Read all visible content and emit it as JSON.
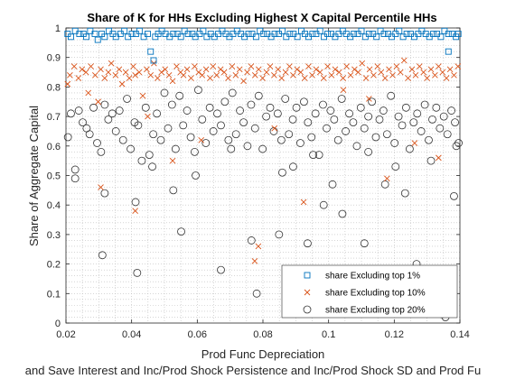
{
  "chart_data": {
    "type": "scatter",
    "title": "Share of K for HHs Excluding Highest X Capital Percentile HHs",
    "xlabel": "Prod Func Depreciation",
    "ylabel": "Share of Aggregate Capital",
    "caption": "and Save Interest and Inc/Prod Shock Persistence and Inc/Prod Shock SD and Prod Fu",
    "xlim": [
      0.02,
      0.14
    ],
    "ylim": [
      0,
      1
    ],
    "xticks": [
      "0.02",
      "0.04",
      "0.06",
      "0.08",
      "0.1",
      "0.12",
      "0.14"
    ],
    "yticks": [
      "0",
      "0.1",
      "0.2",
      "0.3",
      "0.4",
      "0.5",
      "0.6",
      "0.7",
      "0.8",
      "0.9",
      "1"
    ],
    "grid": "minor dotted",
    "legend_position": "bottom-right",
    "series": [
      {
        "name": "share Excluding top 1%",
        "marker": "square",
        "color": "#0072BD",
        "x": [
          0.0205,
          0.0215,
          0.0228,
          0.0241,
          0.0253,
          0.0262,
          0.0274,
          0.0288,
          0.0297,
          0.0309,
          0.0318,
          0.0331,
          0.0343,
          0.0352,
          0.0366,
          0.0378,
          0.0389,
          0.0401,
          0.0413,
          0.0424,
          0.0437,
          0.0449,
          0.0458,
          0.0467,
          0.0472,
          0.0481,
          0.0492,
          0.0503,
          0.0516,
          0.0527,
          0.0539,
          0.055,
          0.0561,
          0.0572,
          0.0585,
          0.0594,
          0.0607,
          0.0618,
          0.0629,
          0.0641,
          0.0652,
          0.0664,
          0.0676,
          0.0687,
          0.0698,
          0.0709,
          0.0721,
          0.0733,
          0.0744,
          0.0756,
          0.0767,
          0.0779,
          0.0791,
          0.0802,
          0.0813,
          0.0825,
          0.0836,
          0.0848,
          0.0859,
          0.0871,
          0.0882,
          0.0893,
          0.0905,
          0.0917,
          0.0928,
          0.0939,
          0.0951,
          0.0962,
          0.0974,
          0.0986,
          0.0997,
          0.1008,
          0.102,
          0.1031,
          0.1043,
          0.1054,
          0.1066,
          0.1077,
          0.1089,
          0.11,
          0.1112,
          0.1123,
          0.1135,
          0.1146,
          0.1158,
          0.1169,
          0.1181,
          0.1192,
          0.1204,
          0.1215,
          0.1227,
          0.1238,
          0.125,
          0.1261,
          0.1273,
          0.1284,
          0.1296,
          0.1307,
          0.1319,
          0.133,
          0.1342,
          0.1353,
          0.1365,
          0.1376,
          0.1388,
          0.1395,
          0.1365
        ],
        "y": [
          0.98,
          0.97,
          0.99,
          0.98,
          0.98,
          0.97,
          0.99,
          0.98,
          0.96,
          0.98,
          0.97,
          0.99,
          0.98,
          0.97,
          0.98,
          0.99,
          0.97,
          0.98,
          0.98,
          0.99,
          0.97,
          0.98,
          0.92,
          0.89,
          0.97,
          0.98,
          0.99,
          0.98,
          0.97,
          0.98,
          0.98,
          0.97,
          0.99,
          0.98,
          0.98,
          0.97,
          0.98,
          0.99,
          0.97,
          0.98,
          0.97,
          0.98,
          0.99,
          0.98,
          0.97,
          0.98,
          0.99,
          0.98,
          0.97,
          0.98,
          0.98,
          0.97,
          0.99,
          0.98,
          0.98,
          0.97,
          0.98,
          0.98,
          0.99,
          0.97,
          0.98,
          0.98,
          0.97,
          0.99,
          0.98,
          0.97,
          0.98,
          0.98,
          0.99,
          0.97,
          0.98,
          0.98,
          0.97,
          0.98,
          0.99,
          0.98,
          0.97,
          0.98,
          0.98,
          0.99,
          0.97,
          0.98,
          0.98,
          0.97,
          0.99,
          0.98,
          0.98,
          0.97,
          0.98,
          0.99,
          0.97,
          0.98,
          0.98,
          0.97,
          0.98,
          0.99,
          0.98,
          0.97,
          0.98,
          0.98,
          0.97,
          0.99,
          0.98,
          0.98,
          0.97,
          0.98,
          0.92
        ]
      },
      {
        "name": "share Excluding top 10%",
        "marker": "x",
        "color": "#D95319",
        "x": [
          0.0205,
          0.0212,
          0.0225,
          0.0238,
          0.0249,
          0.0261,
          0.0268,
          0.0276,
          0.0289,
          0.0298,
          0.0306,
          0.0318,
          0.0329,
          0.0338,
          0.0351,
          0.0362,
          0.0371,
          0.0382,
          0.0393,
          0.0405,
          0.0411,
          0.0423,
          0.0434,
          0.0446,
          0.0458,
          0.0468,
          0.0479,
          0.0491,
          0.0502,
          0.0514,
          0.0525,
          0.0537,
          0.0549,
          0.0558,
          0.0569,
          0.0581,
          0.0592,
          0.0604,
          0.0615,
          0.0627,
          0.0639,
          0.0648,
          0.0659,
          0.0671,
          0.0682,
          0.0694,
          0.0706,
          0.0717,
          0.0729,
          0.0741,
          0.0752,
          0.0764,
          0.0776,
          0.0787,
          0.0799,
          0.0811,
          0.0822,
          0.0834,
          0.0846,
          0.0857,
          0.0869,
          0.0881,
          0.0892,
          0.0904,
          0.0915,
          0.0927,
          0.0939,
          0.095,
          0.0962,
          0.0974,
          0.0985,
          0.0997,
          0.1009,
          0.102,
          0.1032,
          0.1044,
          0.1055,
          0.1067,
          0.1079,
          0.109,
          0.1102,
          0.1114,
          0.1125,
          0.1137,
          0.1149,
          0.116,
          0.1172,
          0.1184,
          0.1195,
          0.1207,
          0.1219,
          0.123,
          0.1242,
          0.1254,
          0.1265,
          0.1277,
          0.1289,
          0.13,
          0.1312,
          0.1324,
          0.1335,
          0.1347,
          0.1359,
          0.137,
          0.1382,
          0.1394,
          0.0306,
          0.0411,
          0.0786,
          0.0775,
          0.0924,
          0.1178,
          0.1262,
          0.1335,
          0.0835,
          0.0612,
          0.0449,
          0.1045,
          0.1123,
          0.0525
        ],
        "y": [
          0.81,
          0.84,
          0.87,
          0.83,
          0.86,
          0.85,
          0.78,
          0.87,
          0.84,
          0.75,
          0.86,
          0.83,
          0.85,
          0.88,
          0.84,
          0.86,
          0.81,
          0.85,
          0.83,
          0.87,
          0.84,
          0.85,
          0.77,
          0.86,
          0.84,
          0.88,
          0.83,
          0.85,
          0.86,
          0.84,
          0.82,
          0.87,
          0.85,
          0.84,
          0.86,
          0.83,
          0.87,
          0.85,
          0.84,
          0.86,
          0.83,
          0.87,
          0.84,
          0.86,
          0.85,
          0.83,
          0.87,
          0.84,
          0.86,
          0.82,
          0.85,
          0.87,
          0.84,
          0.86,
          0.83,
          0.85,
          0.87,
          0.84,
          0.86,
          0.83,
          0.85,
          0.87,
          0.84,
          0.86,
          0.85,
          0.83,
          0.87,
          0.84,
          0.86,
          0.85,
          0.83,
          0.87,
          0.84,
          0.86,
          0.85,
          0.83,
          0.87,
          0.84,
          0.86,
          0.85,
          0.88,
          0.83,
          0.86,
          0.84,
          0.87,
          0.85,
          0.83,
          0.86,
          0.84,
          0.87,
          0.85,
          0.89,
          0.83,
          0.86,
          0.84,
          0.87,
          0.85,
          0.83,
          0.86,
          0.84,
          0.87,
          0.85,
          0.83,
          0.86,
          0.84,
          0.87,
          0.46,
          0.38,
          0.26,
          0.21,
          0.41,
          0.49,
          0.61,
          0.56,
          0.66,
          0.62,
          0.7,
          0.79,
          0.76,
          0.55
        ]
      },
      {
        "name": "share Excluding top 20%",
        "marker": "circle",
        "color": "#333333",
        "x": [
          0.0206,
          0.0215,
          0.0228,
          0.0239,
          0.0251,
          0.0263,
          0.0272,
          0.0284,
          0.0295,
          0.0307,
          0.0318,
          0.0329,
          0.0341,
          0.0352,
          0.0363,
          0.0374,
          0.0386,
          0.0397,
          0.0409,
          0.042,
          0.0431,
          0.0443,
          0.0454,
          0.0466,
          0.0477,
          0.0489,
          0.05,
          0.0511,
          0.0523,
          0.0534,
          0.0546,
          0.0557,
          0.0569,
          0.058,
          0.0592,
          0.0603,
          0.0615,
          0.0626,
          0.0638,
          0.0649,
          0.0661,
          0.0672,
          0.0684,
          0.0695,
          0.0707,
          0.0718,
          0.073,
          0.0741,
          0.0753,
          0.0764,
          0.0776,
          0.0787,
          0.0799,
          0.081,
          0.0822,
          0.0833,
          0.0845,
          0.0856,
          0.0868,
          0.0879,
          0.0891,
          0.0902,
          0.0914,
          0.0925,
          0.0937,
          0.0948,
          0.096,
          0.0971,
          0.0983,
          0.0994,
          0.1006,
          0.1017,
          0.1029,
          0.104,
          0.1052,
          0.1063,
          0.1075,
          0.1086,
          0.1098,
          0.1109,
          0.1121,
          0.1132,
          0.1144,
          0.1155,
          0.1167,
          0.1178,
          0.119,
          0.1201,
          0.1213,
          0.1224,
          0.1236,
          0.1247,
          0.1259,
          0.127,
          0.1282,
          0.1293,
          0.1305,
          0.1316,
          0.1328,
          0.1339,
          0.1351,
          0.1362,
          0.1374,
          0.1385,
          0.1396,
          0.0228,
          0.0311,
          0.0412,
          0.0463,
          0.0551,
          0.0672,
          0.0765,
          0.0781,
          0.0849,
          0.0892,
          0.0936,
          0.0985,
          0.1042,
          0.1109,
          0.1172,
          0.1233,
          0.1268,
          0.1345,
          0.1356,
          0.1382,
          0.0318,
          0.0417,
          0.0527,
          0.0595,
          0.0703,
          0.0859,
          0.0953,
          0.1012,
          0.1121,
          0.1204,
          0.1312,
          0.1389
        ],
        "y": [
          0.63,
          0.71,
          0.52,
          0.72,
          0.68,
          0.66,
          0.64,
          0.73,
          0.61,
          0.58,
          0.74,
          0.69,
          0.71,
          0.65,
          0.72,
          0.62,
          0.76,
          0.59,
          0.68,
          0.67,
          0.55,
          0.73,
          0.57,
          0.64,
          0.71,
          0.62,
          0.78,
          0.66,
          0.74,
          0.59,
          0.77,
          0.67,
          0.72,
          0.63,
          0.58,
          0.79,
          0.69,
          0.61,
          0.73,
          0.65,
          0.71,
          0.67,
          0.75,
          0.62,
          0.78,
          0.64,
          0.72,
          0.68,
          0.6,
          0.74,
          0.66,
          0.77,
          0.59,
          0.7,
          0.73,
          0.65,
          0.71,
          0.62,
          0.76,
          0.64,
          0.69,
          0.73,
          0.61,
          0.75,
          0.68,
          0.63,
          0.71,
          0.57,
          0.74,
          0.66,
          0.72,
          0.69,
          0.62,
          0.76,
          0.65,
          0.71,
          0.68,
          0.6,
          0.73,
          0.66,
          0.7,
          0.75,
          0.63,
          0.69,
          0.72,
          0.64,
          0.77,
          0.61,
          0.7,
          0.67,
          0.73,
          0.59,
          0.68,
          0.71,
          0.65,
          0.74,
          0.62,
          0.69,
          0.73,
          0.66,
          0.7,
          0.64,
          0.72,
          0.68,
          0.61,
          0.49,
          0.23,
          0.41,
          0.53,
          0.31,
          0.18,
          0.28,
          0.1,
          0.3,
          0.53,
          0.27,
          0.4,
          0.37,
          0.27,
          0.47,
          0.44,
          0.2,
          0.03,
          0.02,
          0.43,
          0.44,
          0.17,
          0.45,
          0.5,
          0.59,
          0.51,
          0.57,
          0.47,
          0.58,
          0.53,
          0.55,
          0.6
        ]
      }
    ]
  }
}
